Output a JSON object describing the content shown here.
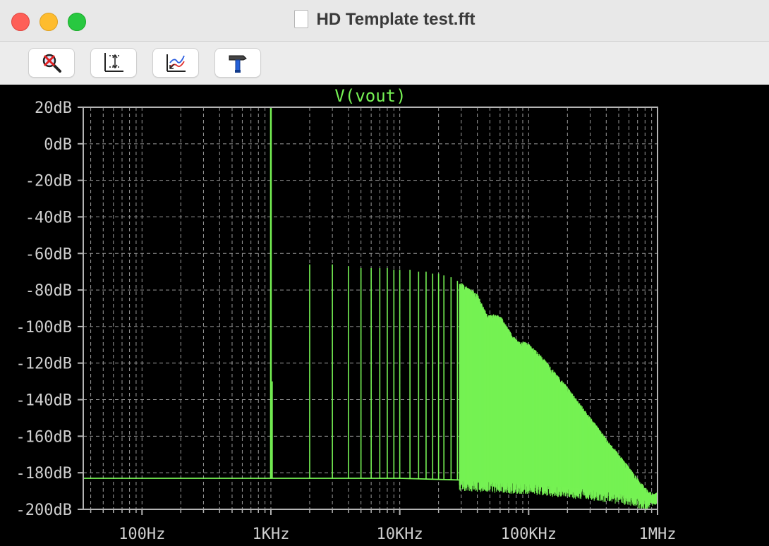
{
  "window": {
    "title": "HD Template test.fft"
  },
  "toolbar": {
    "buttons": [
      {
        "name": "zoom-cancel",
        "icon": "zoom-cancel-icon"
      },
      {
        "name": "autorange",
        "icon": "autorange-icon"
      },
      {
        "name": "pan",
        "icon": "pan-icon"
      },
      {
        "name": "settings-hammer",
        "icon": "hammer-icon"
      }
    ]
  },
  "colors": {
    "trace": "#76f254",
    "grid": "#9a9a9a",
    "frame": "#b4b4b4",
    "labels": "#cfcfcf",
    "background": "#000000"
  },
  "chart_data": {
    "type": "line",
    "title": "V(vout)",
    "xscale": "log",
    "xlim_hz": [
      35,
      1000000
    ],
    "ylim_db": [
      -200,
      20
    ],
    "grid": true,
    "yticks": [
      20,
      0,
      -20,
      -40,
      -60,
      -80,
      -100,
      -120,
      -140,
      -160,
      -180,
      -200
    ],
    "ytick_labels": [
      "20dB",
      "0dB",
      "-20dB",
      "-40dB",
      "-60dB",
      "-80dB",
      "-100dB",
      "-120dB",
      "-140dB",
      "-160dB",
      "-180dB",
      "-200dB"
    ],
    "xticks_hz": [
      100,
      1000,
      10000,
      100000,
      1000000
    ],
    "xtick_labels": [
      "100Hz",
      "1KHz",
      "10KHz",
      "100KHz",
      "1MHz"
    ],
    "series": [
      {
        "floor_db": [
          [
            35,
            -183
          ],
          [
            1000,
            -183
          ],
          [
            10000,
            -183
          ],
          [
            30000,
            -184
          ],
          [
            100000,
            -186
          ],
          [
            300000,
            -189
          ],
          [
            600000,
            -192
          ],
          [
            800000,
            -195
          ],
          [
            1000000,
            -191
          ]
        ],
        "fundamental": {
          "freq_hz": 1000,
          "level_db": 20
        },
        "harmonics": [
          {
            "freq_hz": 2000,
            "level_db": -66
          },
          {
            "freq_hz": 3000,
            "level_db": -66
          },
          {
            "freq_hz": 4000,
            "level_db": -67
          },
          {
            "freq_hz": 5000,
            "level_db": -68
          },
          {
            "freq_hz": 6000,
            "level_db": -68
          },
          {
            "freq_hz": 7000,
            "level_db": -68
          },
          {
            "freq_hz": 8000,
            "level_db": -68
          },
          {
            "freq_hz": 9000,
            "level_db": -69
          },
          {
            "freq_hz": 10000,
            "level_db": -69
          },
          {
            "freq_hz": 12000,
            "level_db": -69
          },
          {
            "freq_hz": 14000,
            "level_db": -70
          },
          {
            "freq_hz": 16000,
            "level_db": -70
          },
          {
            "freq_hz": 18000,
            "level_db": -71
          },
          {
            "freq_hz": 20000,
            "level_db": -71
          },
          {
            "freq_hz": 22000,
            "level_db": -72
          },
          {
            "freq_hz": 25000,
            "level_db": -73
          },
          {
            "freq_hz": 28000,
            "level_db": -75
          }
        ],
        "envelope_db": [
          [
            30000,
            -76
          ],
          [
            40000,
            -82
          ],
          [
            48000,
            -94
          ],
          [
            55000,
            -93
          ],
          [
            62000,
            -95
          ],
          [
            75000,
            -105
          ],
          [
            85000,
            -108
          ],
          [
            95000,
            -108
          ],
          [
            110000,
            -112
          ],
          [
            130000,
            -117
          ],
          [
            160000,
            -125
          ],
          [
            200000,
            -133
          ],
          [
            250000,
            -142
          ],
          [
            320000,
            -152
          ],
          [
            420000,
            -163
          ],
          [
            550000,
            -173
          ],
          [
            700000,
            -183
          ],
          [
            850000,
            -190
          ],
          [
            1000000,
            -192
          ]
        ]
      }
    ]
  }
}
